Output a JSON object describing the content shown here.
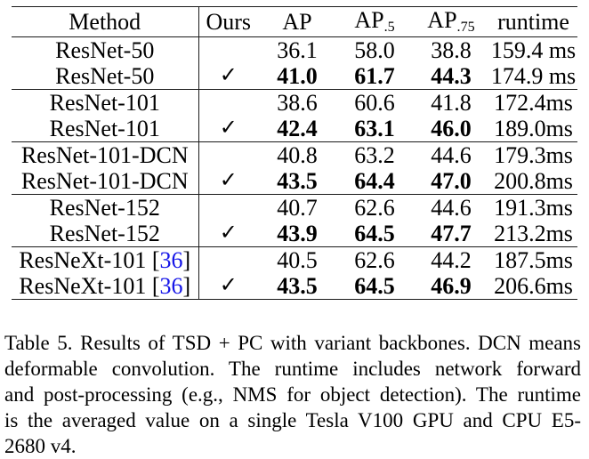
{
  "table": {
    "header": {
      "method": "Method",
      "ours": "Ours",
      "ap": "AP",
      "ap50_base": "AP",
      "ap50_sub": ".5",
      "ap75_base": "AP",
      "ap75_sub": ".75",
      "runtime": "runtime"
    },
    "rows": [
      {
        "method": "ResNet-50",
        "ours": "",
        "ap": "36.1",
        "ap50": "58.0",
        "ap75": "38.8",
        "runtime": "159.4 ms"
      },
      {
        "method": "ResNet-50",
        "ours": "✓",
        "ap": "41.0",
        "ap50": "61.7",
        "ap75": "44.3",
        "runtime": "174.9 ms"
      },
      {
        "method": "ResNet-101",
        "ours": "",
        "ap": "38.6",
        "ap50": "60.6",
        "ap75": "41.8",
        "runtime": "172.4ms"
      },
      {
        "method": "ResNet-101",
        "ours": "✓",
        "ap": "42.4",
        "ap50": "63.1",
        "ap75": "46.0",
        "runtime": "189.0ms"
      },
      {
        "method": "ResNet-101-DCN",
        "ours": "",
        "ap": "40.8",
        "ap50": "63.2",
        "ap75": "44.6",
        "runtime": "179.3ms"
      },
      {
        "method": "ResNet-101-DCN",
        "ours": "✓",
        "ap": "43.5",
        "ap50": "64.4",
        "ap75": "47.0",
        "runtime": "200.8ms"
      },
      {
        "method": "ResNet-152",
        "ours": "",
        "ap": "40.7",
        "ap50": "62.6",
        "ap75": "44.6",
        "runtime": "191.3ms"
      },
      {
        "method": "ResNet-152",
        "ours": "✓",
        "ap": "43.9",
        "ap50": "64.5",
        "ap75": "47.7",
        "runtime": "213.2ms"
      },
      {
        "method_prefix": "ResNeXt-101 [",
        "citation": "36",
        "method_suffix": "]",
        "ours": "",
        "ap": "40.5",
        "ap50": "62.6",
        "ap75": "44.2",
        "runtime": "187.5ms"
      },
      {
        "method_prefix": "ResNeXt-101 [",
        "citation": "36",
        "method_suffix": "]",
        "ours": "✓",
        "ap": "43.5",
        "ap50": "64.5",
        "ap75": "46.9",
        "runtime": "206.6ms"
      }
    ]
  },
  "caption": {
    "lines": [
      "Table 5. Results of TSD + PC with variant backbones. DCN means",
      "deformable convolution. The runtime includes network forward",
      "and post-processing (e.g., NMS for object detection). The runtime",
      "is the averaged value on a single Tesla V100 GPU and CPU E5-",
      "2680 v4."
    ]
  },
  "colors": {
    "citation_blue": "#1515e8",
    "rule": "#1a1a1a",
    "text": "#000000",
    "background": "#ffffff"
  }
}
